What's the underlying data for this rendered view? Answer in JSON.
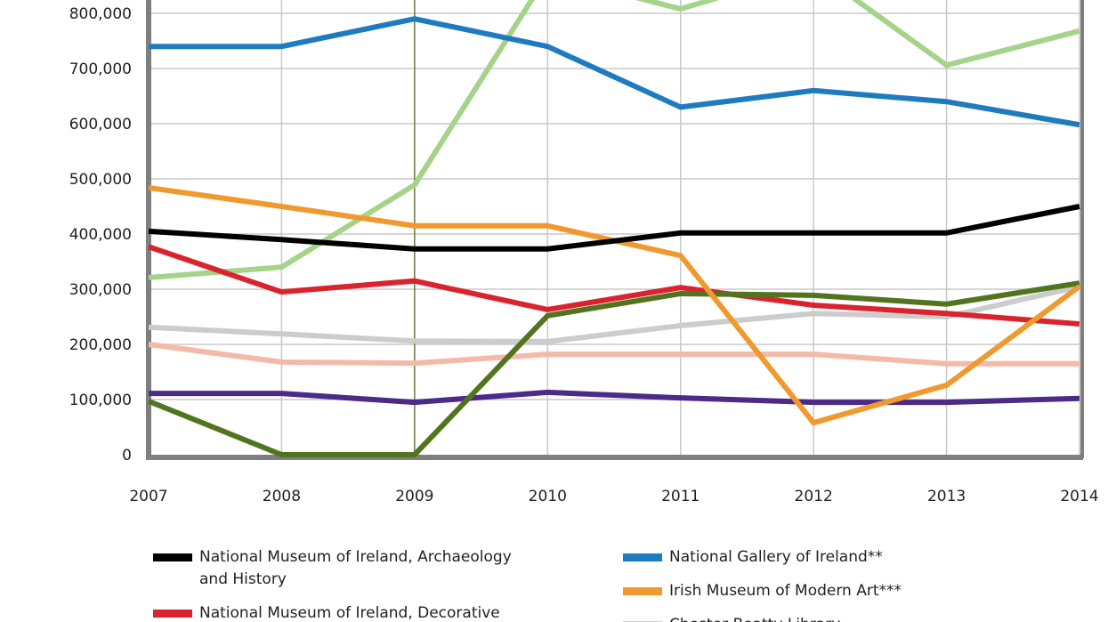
{
  "chart_data": {
    "type": "line",
    "title": "",
    "xlabel": "",
    "ylabel": "",
    "x": [
      "2007",
      "2008",
      "2009",
      "2010",
      "2011",
      "2012",
      "2013",
      "2014"
    ],
    "ylim": [
      0,
      830000
    ],
    "y_ticks": [
      "0",
      "100,000",
      "200,000",
      "300,000",
      "400,000",
      "500,000",
      "600,000",
      "700,000",
      "800,000"
    ],
    "y_tick_values": [
      0,
      100000,
      200000,
      300000,
      400000,
      500000,
      600000,
      700000,
      800000
    ],
    "grid": true,
    "legend_placement": "bottom",
    "series": [
      {
        "name": "National Museum of Ireland, Archaeology and History",
        "color": "#000000",
        "values": [
          405000,
          390000,
          373000,
          373000,
          402000,
          402000,
          402000,
          450000
        ]
      },
      {
        "name": "National Gallery of Ireland**",
        "color": "#1f7bbf",
        "values": [
          740000,
          740000,
          790000,
          740000,
          630000,
          660000,
          640000,
          598000
        ]
      },
      {
        "name": "National Museum of Ireland, Decorative",
        "color": "#d9242e",
        "values": [
          377000,
          295000,
          315000,
          263000,
          303000,
          271000,
          256000,
          237000
        ]
      },
      {
        "name": "Irish Museum of Modern Art***",
        "color": "#f0992e",
        "values": [
          484000,
          450000,
          415000,
          415000,
          361000,
          58000,
          126000,
          305000
        ]
      },
      {
        "name": "Chester Beatty Library",
        "color": "#cccccc",
        "values": [
          231000,
          219000,
          206000,
          205000,
          234000,
          256000,
          250000,
          305000
        ]
      },
      {
        "color": "#a6d38a",
        "values": [
          321000,
          340000,
          489000,
          870000,
          808000,
          880000,
          706000,
          768000
        ]
      },
      {
        "color": "#52741f",
        "values": [
          97000,
          0,
          0,
          252000,
          292000,
          289000,
          273000,
          311000
        ]
      },
      {
        "color": "#f5b9a8",
        "values": [
          200000,
          168000,
          166000,
          182000,
          182000,
          182000,
          165000,
          165000
        ]
      },
      {
        "color": "#4b2a8a",
        "values": [
          111000,
          111000,
          95000,
          113000,
          103000,
          95000,
          95000,
          102000
        ]
      }
    ]
  },
  "legend": [
    {
      "label": "National Museum of Ireland, Archaeology\nand History",
      "color": "#000000"
    },
    {
      "label": "National Museum of Ireland, Decorative",
      "color": "#d9242e"
    },
    {
      "label": "National Gallery of Ireland**",
      "color": "#1f7bbf"
    },
    {
      "label": "Irish Museum of Modern Art***",
      "color": "#f0992e"
    },
    {
      "label": "Chester Beatty Library",
      "color": "#cccccc"
    }
  ]
}
